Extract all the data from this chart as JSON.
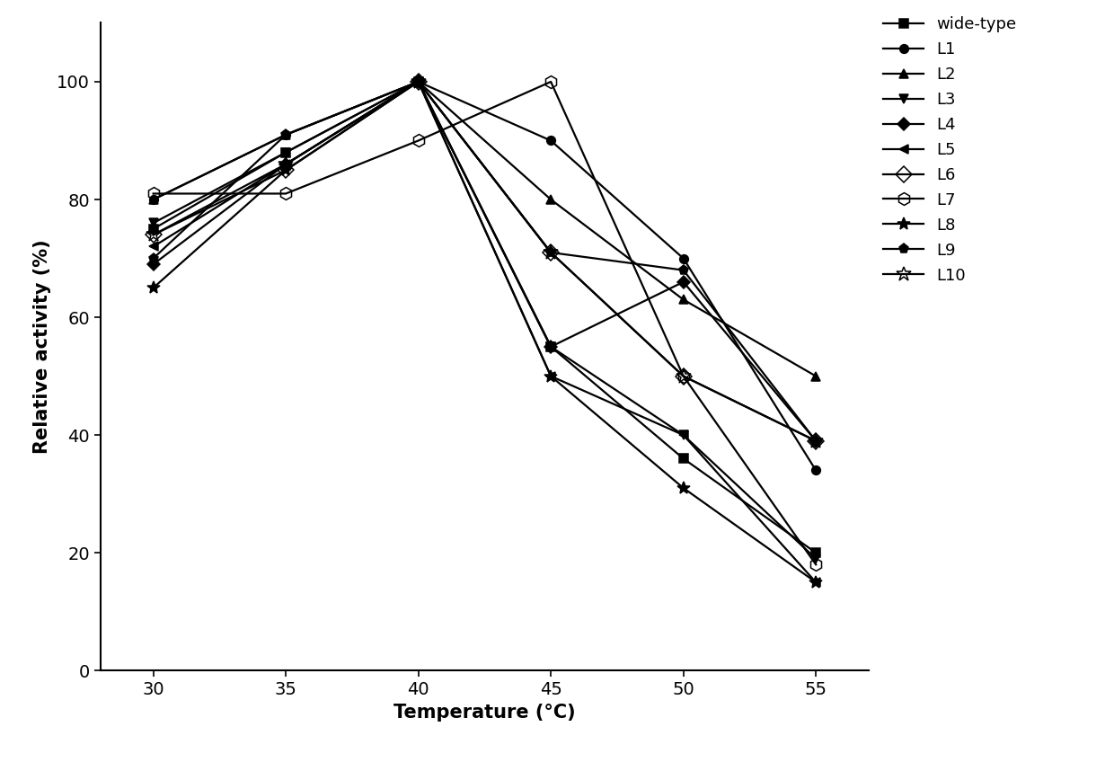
{
  "x": [
    30,
    35,
    40,
    45,
    50,
    55
  ],
  "series": [
    {
      "name": "wide-type",
      "y": [
        75,
        88,
        100,
        55,
        36,
        20
      ],
      "marker": "s",
      "fillstyle": "full",
      "markersize": 7,
      "linewidth": 1.6
    },
    {
      "name": "L1",
      "y": [
        80,
        91,
        100,
        90,
        70,
        34
      ],
      "marker": "o",
      "fillstyle": "full",
      "markersize": 7,
      "linewidth": 1.6
    },
    {
      "name": "L2",
      "y": [
        80,
        91,
        100,
        80,
        63,
        50
      ],
      "marker": "^",
      "fillstyle": "full",
      "markersize": 7,
      "linewidth": 1.6
    },
    {
      "name": "L3",
      "y": [
        76,
        88,
        100,
        55,
        40,
        19
      ],
      "marker": "v",
      "fillstyle": "full",
      "markersize": 7,
      "linewidth": 1.6
    },
    {
      "name": "L4",
      "y": [
        69,
        86,
        100,
        55,
        66,
        39
      ],
      "marker": "D",
      "fillstyle": "full",
      "markersize": 7,
      "linewidth": 1.6
    },
    {
      "name": "L5",
      "y": [
        72,
        86,
        100,
        50,
        40,
        15
      ],
      "marker": "<",
      "fillstyle": "full",
      "markersize": 7,
      "linewidth": 1.6
    },
    {
      "name": "L6",
      "y": [
        74,
        85,
        100,
        71,
        50,
        39
      ],
      "marker": "D",
      "fillstyle": "none",
      "markersize": 9,
      "linewidth": 1.6
    },
    {
      "name": "L7",
      "y": [
        81,
        81,
        90,
        100,
        50,
        18
      ],
      "marker": "h",
      "fillstyle": "none",
      "markersize": 10,
      "linewidth": 1.6
    },
    {
      "name": "L8",
      "y": [
        65,
        85,
        100,
        50,
        31,
        15
      ],
      "marker": "*",
      "fillstyle": "full",
      "markersize": 10,
      "linewidth": 1.6
    },
    {
      "name": "L9",
      "y": [
        70,
        91,
        100,
        71,
        68,
        39
      ],
      "marker": "p",
      "fillstyle": "full",
      "markersize": 8,
      "linewidth": 1.6
    },
    {
      "name": "L10",
      "y": [
        74,
        86,
        100,
        71,
        50,
        39
      ],
      "marker": "*",
      "fillstyle": "none",
      "markersize": 12,
      "linewidth": 1.6
    }
  ],
  "color": "black",
  "xlabel": "Temperature (°C)",
  "ylabel": "Relative activity (%)",
  "xlim": [
    28,
    57
  ],
  "ylim": [
    0,
    110
  ],
  "xticks": [
    30,
    35,
    40,
    45,
    50,
    55
  ],
  "yticks": [
    0,
    20,
    40,
    60,
    80,
    100
  ],
  "label_fontsize": 15,
  "tick_fontsize": 14,
  "legend_fontsize": 13,
  "background_color": "#ffffff"
}
